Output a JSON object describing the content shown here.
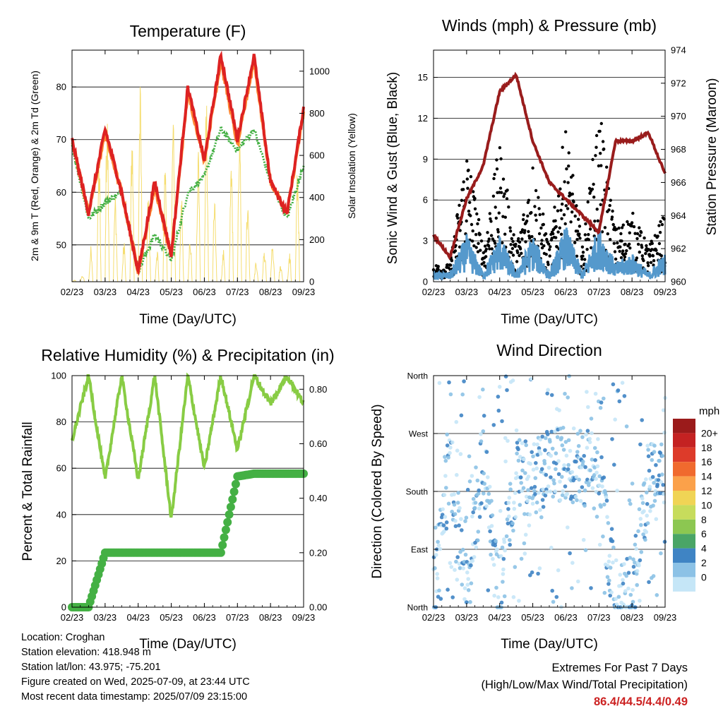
{
  "xticks": [
    "02/23",
    "03/23",
    "04/23",
    "05/23",
    "06/23",
    "07/23",
    "08/23",
    "09/23"
  ],
  "xlabel": "Time (Day/UTC)",
  "info": {
    "location": "Location: Croghan",
    "elevation": "Station elevation: 418.948 m",
    "latlon": "Station lat/lon: 43.975; -75.201",
    "created": "Figure created on Wed, 2025-07-09, at 23:44 UTC",
    "recent": "Most recent data timestamp: 2025/07/09 23:15:00"
  },
  "extremes": {
    "line1": "Extremes For Past 7 Days",
    "line2": "(High/Low/Max Wind/Total Precipitation)",
    "values": "86.4/44.5/4.4/0.49"
  },
  "chart_data": [
    {
      "type": "line",
      "title": "Temperature (F)",
      "xlabel": "Time (Day/UTC)",
      "ylabel": "2m & 9m T (Red, Orange) & 2m Td (Green)",
      "ylabel_right": "Solar Insolation (Yellow)",
      "ylim": [
        43,
        87
      ],
      "ylim_right": [
        0,
        1100
      ],
      "yticks": [
        50,
        60,
        70,
        80
      ],
      "yticks_right": [
        0,
        200,
        400,
        600,
        800,
        1000
      ],
      "grid": true,
      "x": [
        0,
        0.5,
        1,
        1.5,
        2,
        2.5,
        3,
        3.5,
        4,
        4.5,
        5,
        5.5,
        6,
        6.5,
        7
      ],
      "series": [
        {
          "color": "#dd2222",
          "values": [
            70,
            56,
            72,
            60,
            45,
            62,
            48,
            80,
            66,
            86,
            70,
            86,
            62,
            56,
            76
          ]
        },
        {
          "color": "#ff8833",
          "values": [
            70,
            56,
            71,
            60,
            45,
            61,
            48,
            79,
            66,
            85,
            69,
            85,
            62,
            56,
            75
          ]
        },
        {
          "color": "#44b044",
          "values": [
            69,
            55,
            58,
            60,
            45,
            52,
            47,
            60,
            63,
            72,
            68,
            72,
            62,
            55,
            65
          ]
        },
        {
          "color": "#f5dd70",
          "values": [
            0,
            50,
            950,
            80,
            1080,
            20,
            950,
            100,
            1000,
            30,
            900,
            80,
            200,
            10,
            900
          ]
        }
      ]
    },
    {
      "type": "scatter",
      "title": "Winds (mph) & Pressure (mb)",
      "xlabel": "Time (Day/UTC)",
      "ylabel": "Sonic Wind & Gust (Blue, Black)",
      "ylabel_right": "Station Pressure (Maroon)",
      "ylim": [
        0,
        17
      ],
      "ylim_right": [
        960,
        974
      ],
      "yticks": [
        0,
        3,
        6,
        9,
        12,
        15
      ],
      "yticks_right": [
        960,
        962,
        964,
        966,
        968,
        970,
        972,
        974
      ],
      "grid": true,
      "x": [
        0,
        0.5,
        1,
        1.5,
        2,
        2.5,
        3,
        3.5,
        4,
        4.5,
        5,
        5.5,
        6,
        6.5,
        7
      ],
      "series": [
        {
          "color": "#5599cc",
          "values": [
            0.5,
            0.5,
            2.5,
            0.5,
            2.5,
            0.5,
            2.5,
            0.5,
            3,
            0.5,
            3,
            1,
            1.5,
            0.5,
            1.5
          ]
        },
        {
          "color": "#000000",
          "values": [
            1,
            1,
            8,
            2,
            8,
            2,
            7,
            2,
            9,
            2,
            10,
            3,
            4,
            2,
            4
          ]
        },
        {
          "color": "#991c1c",
          "values": [
            962.8,
            961.5,
            965,
            967,
            971.5,
            972.5,
            968.5,
            966,
            965,
            964,
            963,
            968.5,
            968.5,
            969,
            966.5
          ]
        }
      ]
    },
    {
      "type": "line",
      "title": "Relative Humidity (%) & Precipitation (in)",
      "xlabel": "Time (Day/UTC)",
      "ylabel": "Percent & Total Rainfall",
      "ylim": [
        0,
        100
      ],
      "ylim_right": [
        0,
        0.85
      ],
      "yticks": [
        0,
        20,
        40,
        60,
        80,
        100
      ],
      "yticks_right": [
        "0.00",
        "0.20",
        "0.40",
        "0.60",
        "0.80"
      ],
      "grid": true,
      "x": [
        0,
        0.5,
        1,
        1.5,
        2,
        2.5,
        3,
        3.5,
        4,
        4.5,
        5,
        5.5,
        6,
        6.5,
        7
      ],
      "series": [
        {
          "color": "#88cc44",
          "values": [
            72,
            100,
            55,
            100,
            55,
            100,
            38,
            100,
            60,
            100,
            68,
            100,
            88,
            100,
            88
          ]
        },
        {
          "color": "#44b044",
          "values": [
            0,
            0,
            0.2,
            0.2,
            0.2,
            0.2,
            0.2,
            0.2,
            0.2,
            0.2,
            0.48,
            0.49,
            0.49,
            0.49,
            0.49
          ]
        }
      ]
    },
    {
      "type": "scatter",
      "title": "Wind Direction",
      "xlabel": "Time (Day/UTC)",
      "ylabel": "Direction (Colored By Speed)",
      "ylim": [
        0,
        360
      ],
      "yticks": [
        "North",
        "East",
        "South",
        "West",
        "North"
      ],
      "legend_title": "mph",
      "legend_labels": [
        "20+",
        "18",
        "16",
        "14",
        "12",
        "10",
        "8",
        "6",
        "4",
        "2",
        "0"
      ],
      "legend_colors": [
        "#9b1b1b",
        "#c42222",
        "#dd3b2a",
        "#f06a2e",
        "#fba14a",
        "#f0d455",
        "#c7dc5c",
        "#8cc751",
        "#4aa566",
        "#3f84c4",
        "#8cc2e6",
        "#c5e6f7"
      ],
      "grid": true,
      "x": [
        0,
        0.5,
        1,
        1.5,
        2,
        2.5,
        3,
        3.5,
        4,
        4.5,
        5,
        5.5,
        6,
        6.5,
        7
      ],
      "series": [
        {
          "name": "direction",
          "values": [
            10,
            230,
            20,
            230,
            20,
            200,
            200,
            220,
            220,
            220,
            210,
            10,
            20,
            190,
            220
          ]
        }
      ]
    }
  ]
}
